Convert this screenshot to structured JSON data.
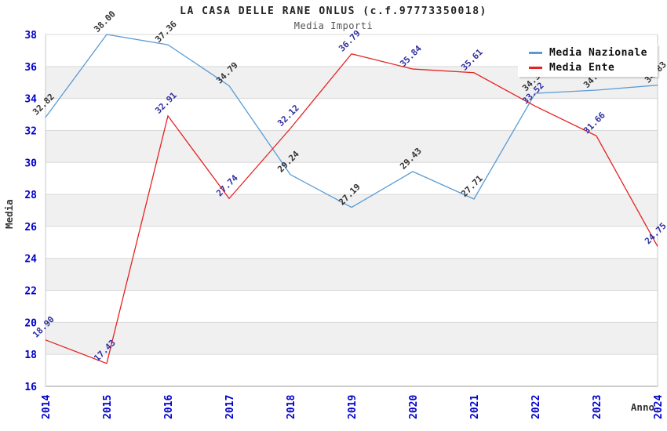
{
  "chart_data": {
    "type": "line",
    "title": "LA CASA DELLE RANE ONLUS (c.f.97773350018)",
    "subtitle": "Media Importi",
    "xlabel": "Anno",
    "ylabel": "Media",
    "x": [
      "2014",
      "2015",
      "2016",
      "2017",
      "2018",
      "2019",
      "2020",
      "2021",
      "2022",
      "2023",
      "2024"
    ],
    "ylim": [
      16,
      38
    ],
    "ytick_step": 2,
    "yticks": [
      16,
      18,
      20,
      22,
      24,
      26,
      28,
      30,
      32,
      34,
      36,
      38
    ],
    "grid": "horizontal-gridlines-with-alternating-bands",
    "legend_position": "top-right",
    "series": [
      {
        "name": "Media Nazionale",
        "color": "#5b9bd5",
        "label_color": "#333333",
        "values": [
          32.82,
          38.0,
          37.36,
          34.79,
          29.24,
          27.19,
          29.43,
          27.71,
          34.32,
          34.52,
          34.83
        ]
      },
      {
        "name": "Media Ente",
        "color": "#e62222",
        "label_color": "#2e2e9e",
        "values": [
          18.9,
          17.43,
          32.91,
          27.74,
          32.12,
          36.79,
          35.84,
          35.61,
          33.52,
          31.66,
          24.75
        ]
      }
    ],
    "colors": {
      "axis_tick_labels": "#0000cc",
      "axis_titles": "#333333",
      "band_fill": "#f0f0f0",
      "gridline": "#d9d9d9",
      "bottom_axis": "#999999",
      "side_border": "#c8c8c8"
    }
  }
}
